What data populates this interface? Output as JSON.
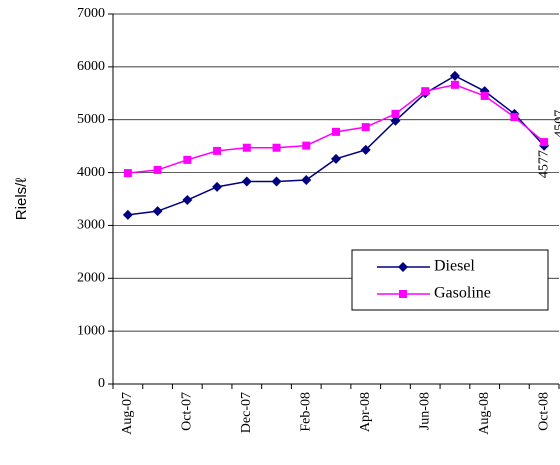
{
  "chart_data": {
    "type": "line",
    "ylabel": "Riels/ℓ",
    "categories": [
      "Aug-07",
      null,
      "Oct-07",
      null,
      "Dec-07",
      null,
      "Feb-08",
      null,
      "Apr-08",
      null,
      "Jun-08",
      null,
      "Aug-08",
      null,
      "Oct-08"
    ],
    "series": [
      {
        "name": "Diesel",
        "color": "#000080",
        "marker": "diamond",
        "values": [
          3200,
          3270,
          3480,
          3730,
          3830,
          3830,
          3860,
          4260,
          4430,
          4980,
          5500,
          5830,
          5540,
          5110,
          4507
        ]
      },
      {
        "name": "Gasoline",
        "color": "#ff00ff",
        "marker": "square",
        "values": [
          3990,
          4050,
          4240,
          4410,
          4470,
          4470,
          4510,
          4770,
          4860,
          5110,
          5540,
          5660,
          5450,
          5050,
          4577
        ]
      }
    ],
    "ylim": [
      0,
      7000
    ],
    "yticks": [
      0,
      1000,
      2000,
      3000,
      4000,
      5000,
      6000,
      7000
    ],
    "grid": true,
    "legend": "lower right"
  }
}
